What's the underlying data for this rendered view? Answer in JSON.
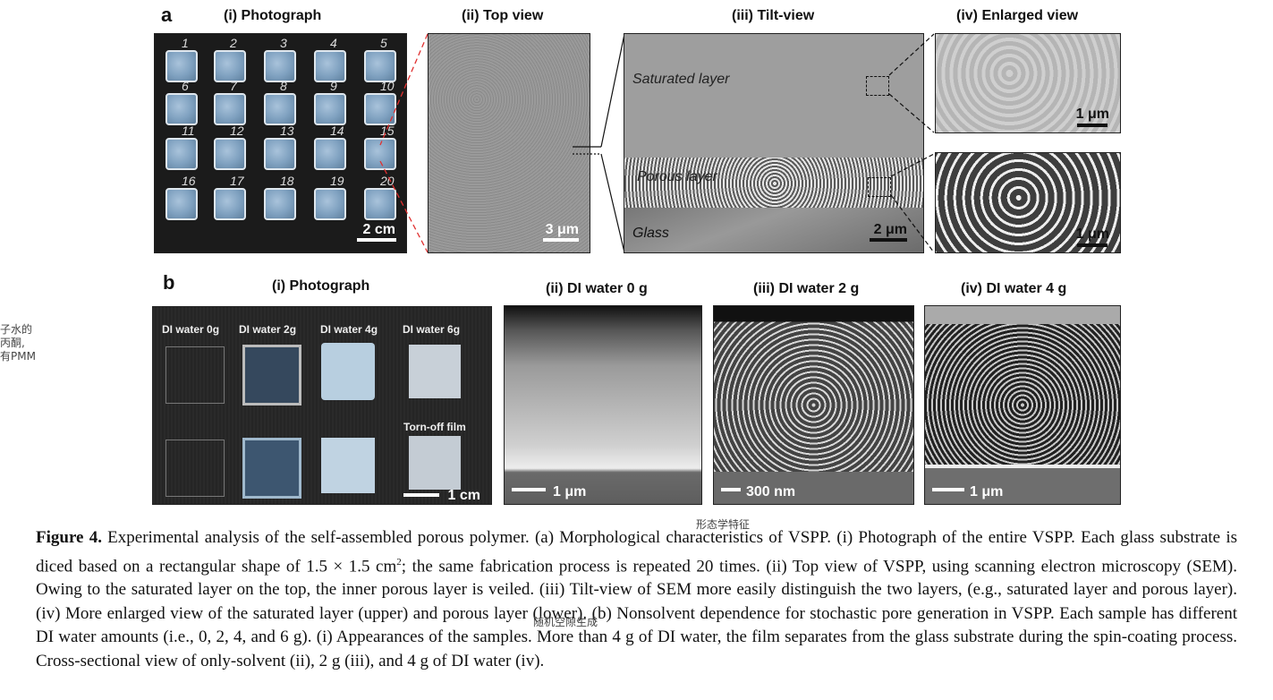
{
  "panel_a": {
    "letter": "a",
    "titles": [
      "(i) Photograph",
      "(ii) Top view",
      "(iii) Tilt-view",
      "(iv) Enlarged view"
    ],
    "sample_numbers": [
      "1",
      "2",
      "3",
      "4",
      "5",
      "6",
      "7",
      "8",
      "9",
      "10",
      "11",
      "12",
      "13",
      "14",
      "15",
      "16",
      "17",
      "18",
      "19",
      "20"
    ],
    "scale_photo": "2 cm",
    "scale_top": "3 μm",
    "scale_tilt": "2 μm",
    "scale_enl_top": "1 μm",
    "scale_enl_bot": "1 μm",
    "tilt_labels": {
      "saturated": "Saturated layer",
      "porous": "Porous layer",
      "glass": "Glass"
    }
  },
  "panel_b": {
    "letter": "b",
    "titles": [
      "(i) Photograph",
      "(ii) DI water 0 g",
      "(iii) DI water 2 g",
      "(iv) DI water 4 g"
    ],
    "photo_labels": [
      "DI water 0g",
      "DI water 2g",
      "DI water 4g",
      "DI water 6g"
    ],
    "torn_label": "Torn-off film",
    "scale_photo": "1 cm",
    "scale_0g": "1 μm",
    "scale_2g": "300 nm",
    "scale_4g": "1 μm"
  },
  "annotations": {
    "left_lines": [
      "子水的",
      "丙酮,",
      "有PMM"
    ],
    "morph": "形态学特征",
    "random": "随机空隙生成"
  },
  "caption": {
    "label": "Figure 4.",
    "text_before_sup": " Experimental analysis of the self-assembled porous polymer. (a) Morphological characteristics of VSPP. (i) Photograph of the entire VSPP. Each glass substrate is diced based on a rectangular shape of 1.5 × 1.5 cm",
    "sup": "2",
    "text_after_sup": "; the same fabrication process is repeated 20 times. (ii) Top view of VSPP, using scanning electron microscopy (SEM). Owing to the saturated layer on the top, the inner porous layer is veiled. (iii) Tilt-view of SEM more easily distinguish the two layers, (e.g., saturated layer and porous layer). (iv) More enlarged view of the saturated layer (upper) and porous layer (lower). (b) Nonsolvent dependence for stochastic pore generation in VSPP. Each sample has different DI water amounts (i.e., 0, 2, 4, and 6 g). (i) Appearances of the samples. More than 4 g of DI water, the film separates from the glass substrate during the spin-coating process. Cross-sectional view of only-solvent (ii), 2 g (iii), and 4 g of DI water (iv)."
  },
  "colors": {
    "dashed_red": "#e03030",
    "figure_bg": "#1b1b1b"
  }
}
